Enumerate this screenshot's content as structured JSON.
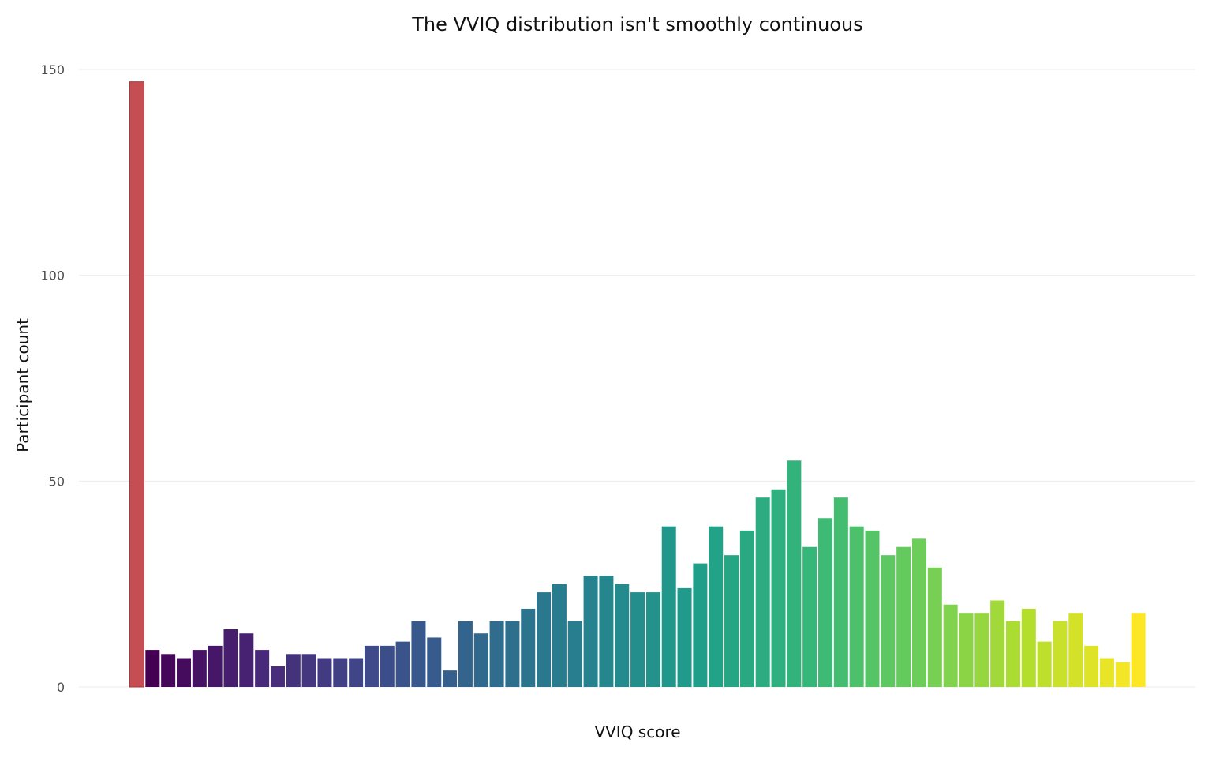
{
  "chart_data": {
    "type": "bar",
    "title": "The VVIQ distribution isn't smoothly continuous",
    "xlabel": "VVIQ score",
    "ylabel": "Participant count",
    "ylim": [
      0,
      150
    ],
    "yticks": [
      0,
      50,
      100,
      150
    ],
    "grid": true,
    "highlight_color": "#c44e52",
    "palette": "viridis",
    "values": [
      147,
      9,
      8,
      7,
      9,
      10,
      14,
      13,
      9,
      5,
      8,
      8,
      7,
      7,
      7,
      10,
      10,
      11,
      16,
      12,
      4,
      16,
      13,
      16,
      16,
      19,
      23,
      25,
      16,
      27,
      27,
      25,
      23,
      23,
      39,
      24,
      30,
      39,
      32,
      38,
      46,
      48,
      55,
      34,
      41,
      46,
      39,
      38,
      32,
      34,
      36,
      29,
      20,
      18,
      18,
      21,
      16,
      19,
      11,
      16,
      18,
      10,
      7,
      6,
      18
    ]
  }
}
